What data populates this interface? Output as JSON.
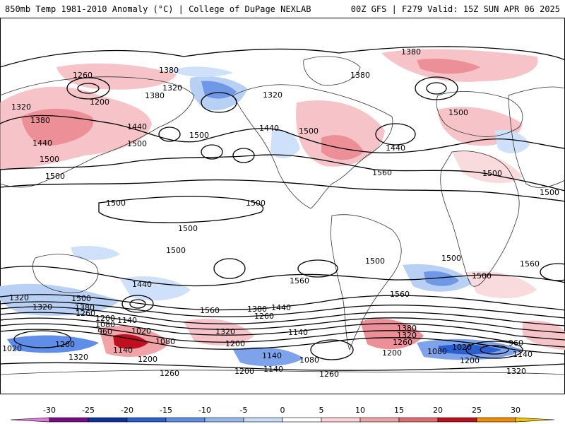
{
  "header": {
    "left": "850mb Temp 1981-2010 Anomaly (°C) | College of DuPage NEXLAB",
    "right": "00Z GFS | F279 Valid: 15Z SUN APR 06 2025"
  },
  "contour_labels": [
    "1380",
    "1260",
    "1320",
    "1200",
    "1380",
    "1320",
    "1380",
    "1380",
    "1320",
    "1380",
    "1440",
    "1440",
    "1500",
    "1500",
    "1500",
    "1500",
    "1440",
    "1500",
    "1500",
    "1560",
    "1500",
    "1440",
    "1500",
    "1500",
    "1500",
    "1500",
    "1500",
    "1560",
    "1560",
    "1500",
    "1500",
    "1560",
    "1440",
    "1500",
    "1380",
    "1440",
    "1320",
    "1260",
    "1200",
    "1080",
    "960",
    "1140",
    "1020",
    "1140",
    "1080",
    "1260",
    "1320",
    "1200",
    "1560",
    "1380",
    "1260",
    "1140",
    "1320",
    "1200",
    "1140",
    "1260",
    "1080",
    "1200",
    "1140",
    "1380",
    "1320",
    "1260",
    "1200",
    "1020",
    "1080",
    "960",
    "1140",
    "1200",
    "1320",
    "1260",
    "1320",
    "1020",
    "1500"
  ],
  "colorbar": {
    "ticks": [
      "-30",
      "-25",
      "-20",
      "-15",
      "-10",
      "-5",
      "0",
      "5",
      "10",
      "15",
      "20",
      "25",
      "30"
    ],
    "colors": [
      "#7a0a8a",
      "#1030a0",
      "#2a5fd0",
      "#5f8ee8",
      "#97b8f0",
      "#c9dcf8",
      "#ffffff",
      "#fbd5d8",
      "#f2a3a8",
      "#e66a72",
      "#c01020",
      "#f28c00"
    ],
    "low_arrow_color": "#e07adc",
    "high_arrow_color": "#f5c400"
  }
}
